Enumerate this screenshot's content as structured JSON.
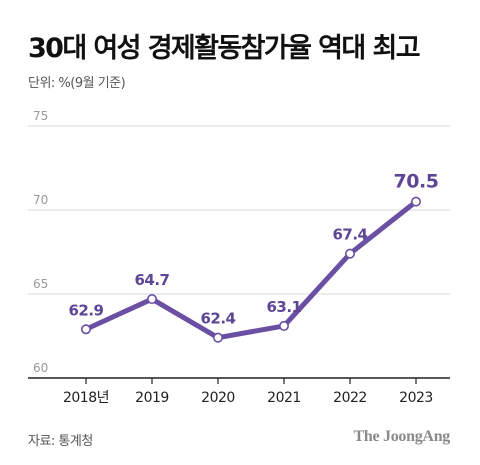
{
  "title": "30대 여성 경제활동참가율 역대 최고",
  "unit_label": "단위: %(9월 기준)",
  "source": "자료: 통계청",
  "logo_text": "The JoongAng",
  "colors": {
    "line": "#6a4fa3",
    "grid": "#d9d9d9",
    "axis": "#222222",
    "tick_text": "#999999",
    "label_text": "#5e4596"
  },
  "chart_data": {
    "type": "line",
    "categories": [
      "2018년",
      "2019",
      "2020",
      "2021",
      "2022",
      "2023"
    ],
    "values": [
      62.9,
      64.7,
      62.4,
      63.1,
      67.4,
      70.5
    ],
    "data_labels": [
      "62.9",
      "64.7",
      "62.4",
      "63.1",
      "67.4",
      "70.5"
    ],
    "y_ticks": [
      60,
      65,
      70,
      75
    ],
    "ylim": [
      60,
      75
    ],
    "grid": true,
    "title": "30대 여성 경제활동참가율 역대 최고",
    "xlabel": "",
    "ylabel": ""
  }
}
